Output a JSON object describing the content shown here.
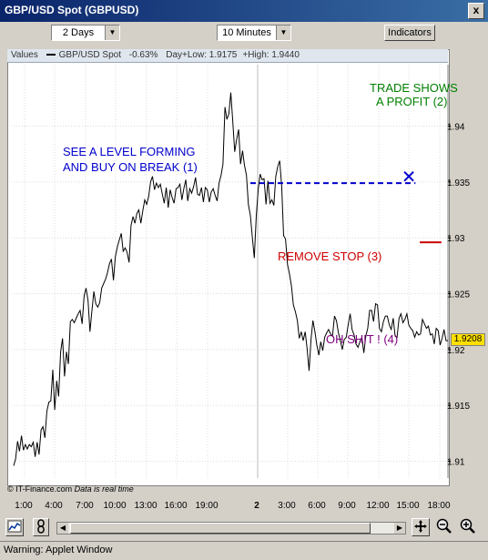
{
  "window": {
    "title": "GBP/USD Spot (GBPUSD)",
    "close_label": "x"
  },
  "toolbar": {
    "period": "2 Days",
    "interval": "10 Minutes",
    "indicators_label": "Indicators"
  },
  "info_bar": {
    "values_label": "Values",
    "series": "GBP/USD Spot",
    "change": "-0.63%",
    "day_low": "Day+Low: 1.9175",
    "high": "+High: 1.9440"
  },
  "footer": {
    "source": "© IT-Finance.com",
    "note": "Data is real time"
  },
  "status": {
    "text": "Warning: Applet Window"
  },
  "icons": [
    "chart-type-icon",
    "link-icon",
    "move-icon",
    "zoom-out-icon",
    "zoom-in-icon"
  ],
  "chart_data": {
    "type": "line",
    "x_tick_labels": [
      "1:00",
      "4:00",
      "7:00",
      "10:00",
      "13:00",
      "16:00",
      "19:00",
      "2",
      "3:00",
      "6:00",
      "9:00",
      "12:00",
      "15:00",
      "18:00"
    ],
    "y_ticks": [
      1.91,
      1.915,
      1.92,
      1.925,
      1.93,
      1.935,
      1.94
    ],
    "y_tick_labels": [
      "1.91",
      "1.915",
      "1.92",
      "1.925",
      "1.93",
      "1.935",
      "1.94"
    ],
    "ylim": [
      1.9085,
      1.9455
    ],
    "xlim": [
      0,
      1
    ],
    "last_price": "1.9208",
    "last_value": 1.9208,
    "grid": true,
    "annotations": [
      {
        "text": "SEE A LEVEL FORMING",
        "color": "#0000cc"
      },
      {
        "text": "AND BUY ON BREAK (1)",
        "color": "#0000cc"
      },
      {
        "text": "TRADE SHOWS",
        "color": "#008000"
      },
      {
        "text": "A PROFIT (2)",
        "color": "#008000"
      },
      {
        "text": "REMOVE STOP (3)",
        "color": "#cc0000"
      },
      {
        "text": "OH SHIT ! (4)",
        "color": "#800080"
      }
    ],
    "price_series": {
      "x": [
        0.0,
        0.0045,
        0.009,
        0.0135,
        0.018,
        0.0225,
        0.027,
        0.0315,
        0.036,
        0.0405,
        0.045,
        0.0495,
        0.054,
        0.0585,
        0.063,
        0.0675,
        0.072,
        0.0765,
        0.0811,
        0.0856,
        0.0901,
        0.0946,
        0.0991,
        0.1036,
        0.1081,
        0.1126,
        0.1171,
        0.1216,
        0.1261,
        0.1306,
        0.1351,
        0.1396,
        0.1441,
        0.1486,
        0.1531,
        0.1577,
        0.1622,
        0.1667,
        0.1712,
        0.1757,
        0.1802,
        0.1847,
        0.1892,
        0.1937,
        0.1982,
        0.2027,
        0.2072,
        0.2117,
        0.2162,
        0.2207,
        0.2252,
        0.2297,
        0.2342,
        0.2387,
        0.2432,
        0.2477,
        0.2523,
        0.2568,
        0.2613,
        0.2658,
        0.2703,
        0.2748,
        0.2793,
        0.2838,
        0.2883,
        0.2928,
        0.2973,
        0.3018,
        0.3063,
        0.3108,
        0.3153,
        0.3198,
        0.3243,
        0.3288,
        0.3333,
        0.3378,
        0.3423,
        0.3468,
        0.3514,
        0.3559,
        0.3604,
        0.3649,
        0.3694,
        0.3739,
        0.3784,
        0.3829,
        0.3874,
        0.3919,
        0.3964,
        0.4009,
        0.4054,
        0.4099,
        0.4144,
        0.4189,
        0.4234,
        0.4279,
        0.4324,
        0.4369,
        0.4414,
        0.4459,
        0.4505,
        0.455,
        0.4595,
        0.464,
        0.4685,
        0.473,
        0.4775,
        0.482,
        0.4865,
        0.491,
        0.4955,
        0.5,
        0.5045,
        0.509,
        0.5135,
        0.518,
        0.5225,
        0.527,
        0.5315,
        0.536,
        0.5405,
        0.545,
        0.5495,
        0.5541,
        0.5586,
        0.5631,
        0.5676,
        0.5721,
        0.5766,
        0.5811,
        0.5856,
        0.5901,
        0.5946,
        0.5991,
        0.6036,
        0.6081,
        0.6126,
        0.6171,
        0.6216,
        0.6261,
        0.6306,
        0.6351,
        0.6396,
        0.6441,
        0.6486,
        0.6532,
        0.6577,
        0.6622,
        0.6667,
        0.6712,
        0.6757,
        0.6802,
        0.6847,
        0.6892,
        0.6937,
        0.6982,
        0.7027,
        0.7072,
        0.7117,
        0.7162,
        0.7207,
        0.7252,
        0.7297,
        0.7342,
        0.7387,
        0.7432,
        0.7477,
        0.7523,
        0.7568,
        0.7613,
        0.7658,
        0.7703,
        0.7748,
        0.7793,
        0.7838,
        0.7883,
        0.7928,
        0.7973,
        0.8018,
        0.8063,
        0.8108,
        0.8153,
        0.8198,
        0.8243,
        0.8288,
        0.8333,
        0.8378,
        0.8423,
        0.8468,
        0.8514,
        0.8559,
        0.8604,
        0.8649,
        0.8694,
        0.8739,
        0.8784,
        0.8829,
        0.8874,
        0.8919,
        0.8964,
        0.9009,
        0.9054,
        0.9099,
        0.9144,
        0.9189,
        0.9234,
        0.9279,
        0.9324,
        0.9369,
        0.9414,
        0.9459,
        0.9505,
        0.955,
        0.9595,
        0.964,
        0.9685,
        0.973,
        0.9775,
        0.982,
        0.9865,
        0.991,
        0.9955,
        1.0
      ],
      "y": [
        1.9096,
        1.9102,
        1.9118,
        1.9109,
        1.9123,
        1.911,
        1.9115,
        1.9111,
        1.9115,
        1.9113,
        1.9117,
        1.9104,
        1.9117,
        1.9106,
        1.9128,
        1.9131,
        1.9121,
        1.9145,
        1.9153,
        1.9154,
        1.9182,
        1.9146,
        1.9172,
        1.9158,
        1.9198,
        1.921,
        1.9176,
        1.9198,
        1.9187,
        1.9225,
        1.9227,
        1.9224,
        1.9228,
        1.9232,
        1.9235,
        1.9223,
        1.9248,
        1.9255,
        1.9244,
        1.9216,
        1.9235,
        1.9252,
        1.9241,
        1.9238,
        1.9242,
        1.9255,
        1.9259,
        1.9263,
        1.9269,
        1.9277,
        1.9281,
        1.9262,
        1.9283,
        1.9292,
        1.9298,
        1.9304,
        1.9288,
        1.9291,
        1.9287,
        1.9278,
        1.9311,
        1.9319,
        1.9313,
        1.9322,
        1.9325,
        1.9313,
        1.9324,
        1.9334,
        1.933,
        1.9337,
        1.935,
        1.9355,
        1.9343,
        1.9349,
        1.9345,
        1.9348,
        1.9339,
        1.9331,
        1.9345,
        1.9327,
        1.9343,
        1.9336,
        1.9331,
        1.9344,
        1.9345,
        1.9348,
        1.9334,
        1.9344,
        1.9352,
        1.9333,
        1.9344,
        1.934,
        1.9346,
        1.9354,
        1.9339,
        1.9338,
        1.9345,
        1.9332,
        1.9345,
        1.9343,
        1.9332,
        1.9341,
        1.9344,
        1.9338,
        1.9333,
        1.9349,
        1.9356,
        1.9366,
        1.9417,
        1.9406,
        1.9411,
        1.943,
        1.9405,
        1.9377,
        1.9388,
        1.9397,
        1.9366,
        1.9378,
        1.9365,
        1.9356,
        1.933,
        1.932,
        1.9301,
        1.9282,
        1.932,
        1.9343,
        1.9357,
        1.9352,
        1.9353,
        1.933,
        1.9351,
        1.9331,
        1.9334,
        1.9329,
        1.9355,
        1.9364,
        1.9369,
        1.9346,
        1.9302,
        1.9299,
        1.9276,
        1.9268,
        1.9257,
        1.924,
        1.9234,
        1.9226,
        1.921,
        1.9216,
        1.9208,
        1.9216,
        1.9201,
        1.9181,
        1.9209,
        1.9226,
        1.9216,
        1.9204,
        1.9195,
        1.9207,
        1.9199,
        1.9211,
        1.9215,
        1.9218,
        1.9214,
        1.9212,
        1.923,
        1.9226,
        1.9215,
        1.9208,
        1.92,
        1.9209,
        1.9211,
        1.9222,
        1.9232,
        1.9218,
        1.9213,
        1.9205,
        1.9202,
        1.9207,
        1.9211,
        1.9197,
        1.9212,
        1.9219,
        1.9235,
        1.9235,
        1.9225,
        1.9241,
        1.924,
        1.9219,
        1.9216,
        1.9225,
        1.923,
        1.923,
        1.9222,
        1.9218,
        1.9228,
        1.9212,
        1.9211,
        1.9228,
        1.9232,
        1.9224,
        1.9227,
        1.9232,
        1.9222,
        1.9219,
        1.9217,
        1.9211,
        1.9216,
        1.9213,
        1.9214,
        1.9227,
        1.9223,
        1.9219,
        1.9221,
        1.9213,
        1.9214,
        1.9205,
        1.9219,
        1.9217,
        1.9204,
        1.921,
        1.9218,
        1.9208,
        1.9208
      ]
    },
    "level_line": {
      "x1": 0.545,
      "x2": 0.925,
      "y": 1.9349,
      "color": "#0000cc"
    },
    "buy_mark": {
      "x": 0.91,
      "y": 1.9355,
      "color": "#0000cc"
    },
    "stop_line": {
      "x1": 0.935,
      "x2": 0.985,
      "y": 1.9296,
      "color": "#cc0000"
    }
  }
}
